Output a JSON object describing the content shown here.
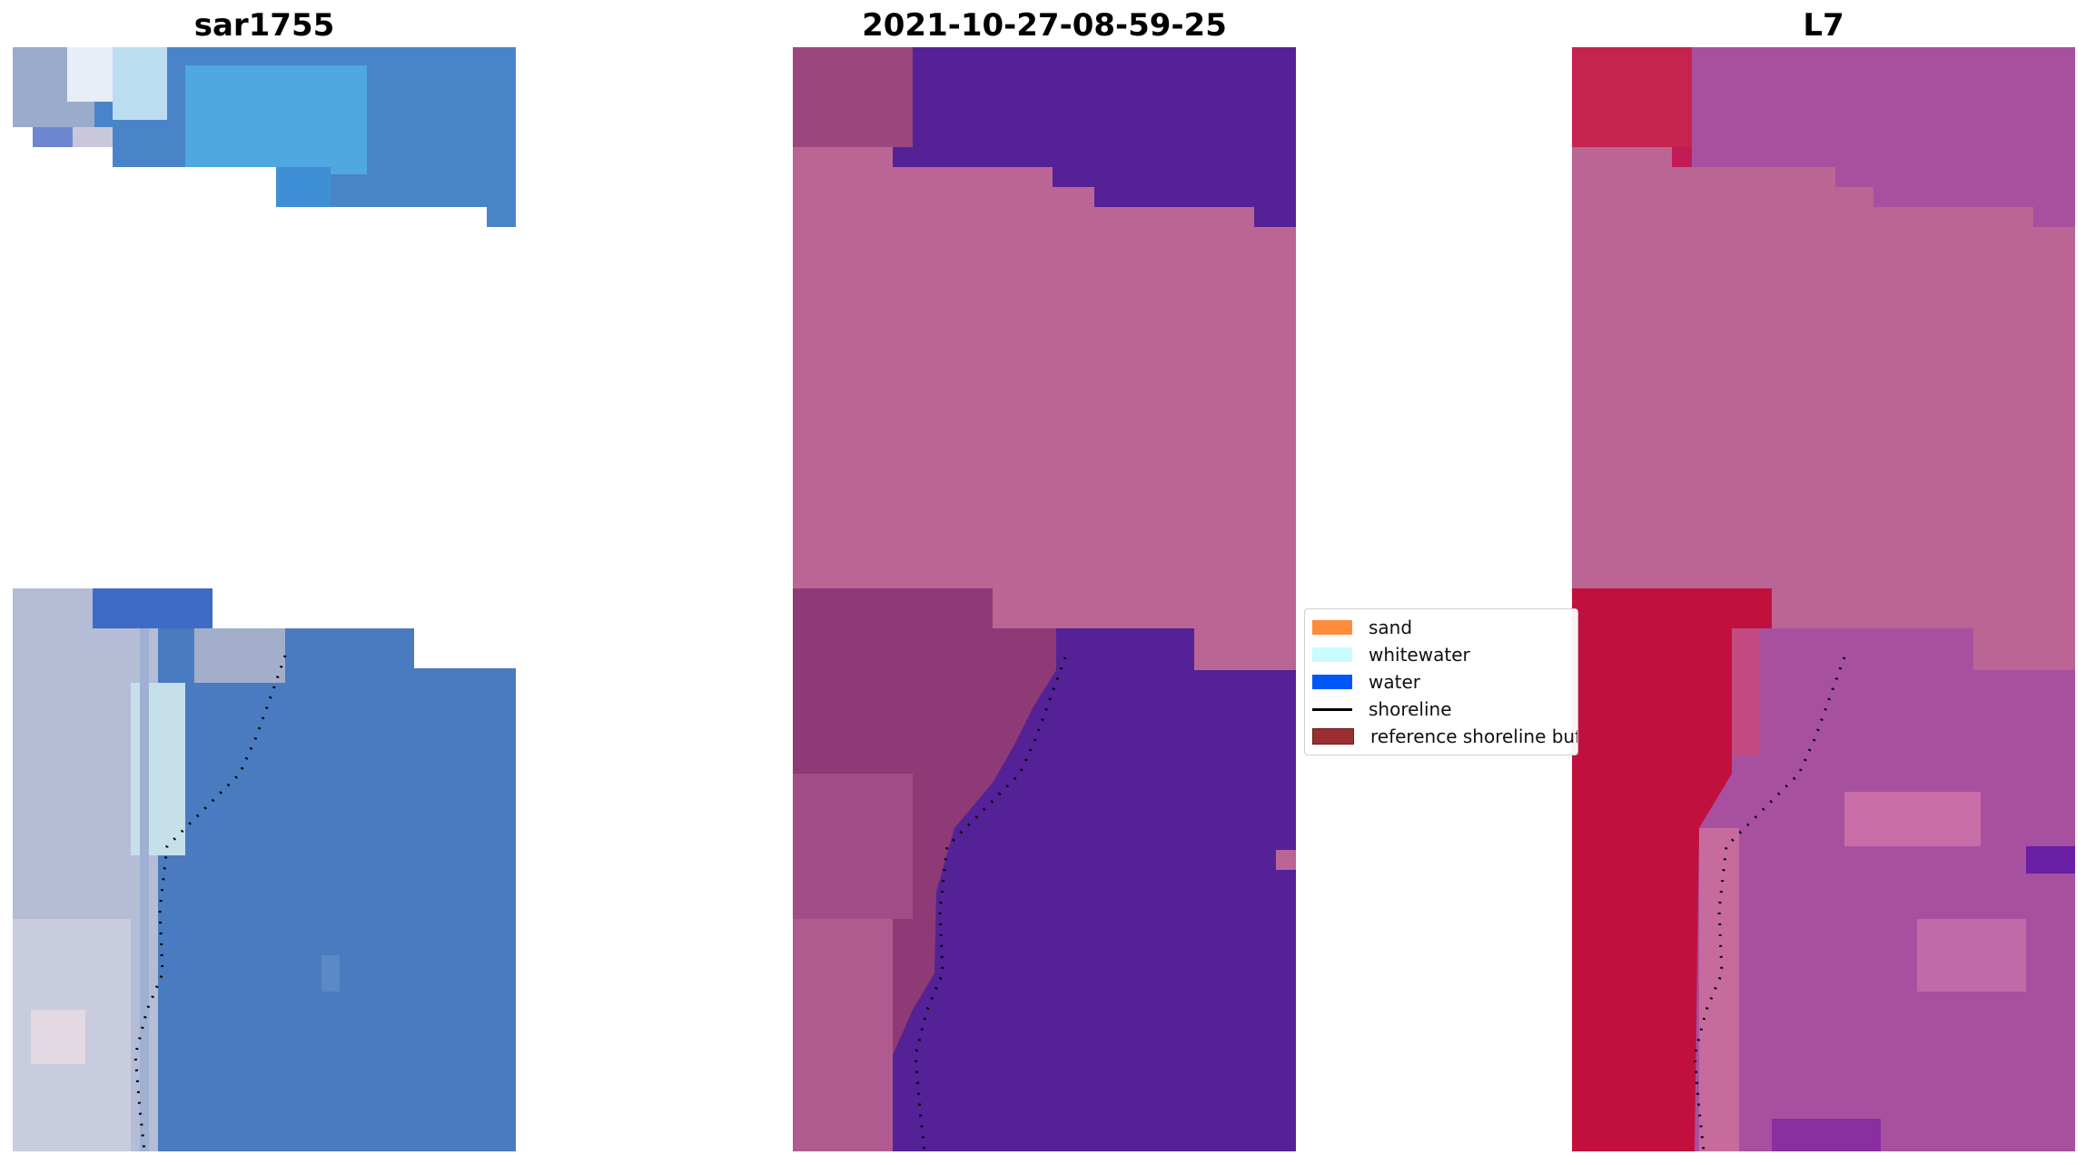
{
  "panels": [
    {
      "id": "rgb",
      "title": "sar1755"
    },
    {
      "id": "classified",
      "title": "2021-10-27-08-59-25"
    },
    {
      "id": "index",
      "title": "L7"
    }
  ],
  "legend": {
    "items": [
      {
        "label": "sand",
        "kind": "patch",
        "color": "#ff8c3a"
      },
      {
        "label": "whitewater",
        "kind": "patch",
        "color": "#c9fbff"
      },
      {
        "label": "water",
        "kind": "patch",
        "color": "#0057f5"
      },
      {
        "label": "shoreline",
        "kind": "line",
        "color": "#000000"
      },
      {
        "label": "reference shoreline buffer",
        "kind": "patch",
        "color": "#9b2f2f"
      }
    ]
  },
  "colors": {
    "sand_class": "#bb6595",
    "water_class": "#542296",
    "rgb_water": "#4a7bc0",
    "rgb_beach": "#c3c5dc",
    "index_land": "#c2103e",
    "index_water": "#a850a0",
    "shoreline_dots": "#000000"
  }
}
